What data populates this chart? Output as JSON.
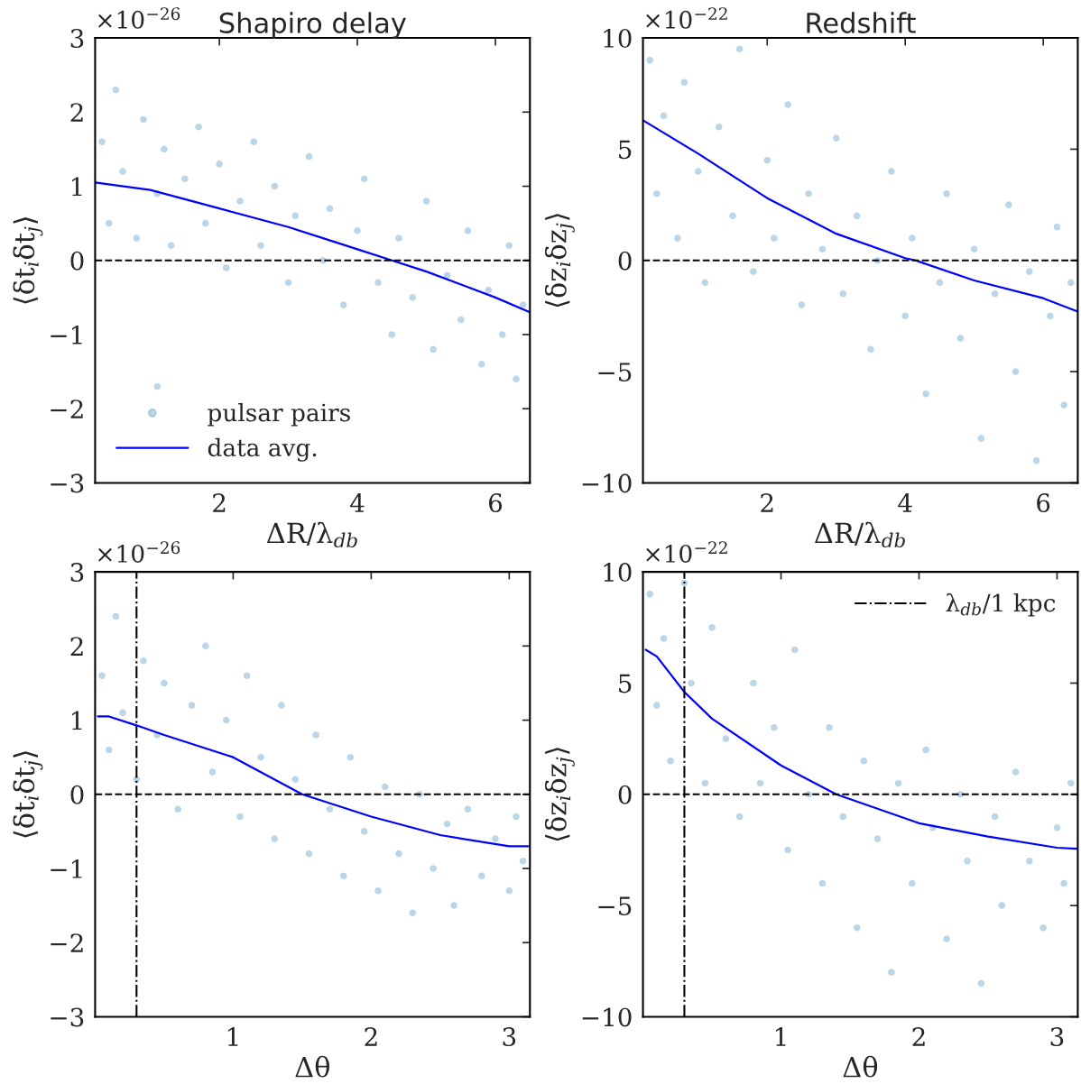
{
  "chart_data": [
    {
      "type": "scatter",
      "title": "Shapiro delay",
      "xlabel": "ΔR/λ$_{db}$",
      "ylabel": "⟨δt$_{i}$δt$_{j}$⟩",
      "annotations": [
        "×10$^{−26}$"
      ],
      "xlim": [
        0.2,
        6.5
      ],
      "xticks": [
        2,
        4,
        6
      ],
      "ylim": [
        -3,
        3
      ],
      "yticks": [
        -3,
        -2,
        -1,
        0,
        1,
        2,
        3
      ],
      "grid": false,
      "legend": "bottom left",
      "ref_lines": [
        {
          "axis": "y",
          "value": 0,
          "color": "#000000",
          "line_style": "dashed"
        }
      ],
      "series": [
        {
          "name": "pulsar pairs",
          "marker": "circle",
          "color": "#1f77b4",
          "x": [
            0.3,
            0.4,
            0.5,
            0.6,
            0.8,
            0.9,
            1.1,
            1.2,
            1.3,
            1.5,
            1.7,
            1.8,
            2.0,
            2.1,
            2.3,
            2.5,
            2.6,
            2.8,
            3.0,
            3.1,
            3.3,
            3.5,
            3.6,
            3.8,
            4.0,
            4.1,
            4.3,
            4.5,
            4.6,
            4.8,
            5.0,
            5.1,
            5.3,
            5.5,
            5.6,
            5.8,
            5.9,
            6.1,
            6.2,
            6.3,
            6.4,
            1.1
          ],
          "values": [
            1.6,
            0.5,
            2.3,
            1.2,
            0.3,
            1.9,
            0.9,
            1.5,
            0.2,
            1.1,
            1.8,
            0.5,
            1.3,
            -0.1,
            0.8,
            1.6,
            0.2,
            1.0,
            -0.3,
            0.6,
            1.4,
            0.0,
            0.7,
            -0.6,
            0.4,
            1.1,
            -0.3,
            -1.0,
            0.3,
            -0.5,
            0.8,
            -1.2,
            -0.2,
            -0.8,
            0.4,
            -1.4,
            -0.4,
            -1.0,
            0.2,
            -1.6,
            -0.6,
            -1.7
          ]
        },
        {
          "name": "data avg.",
          "type": "line",
          "color": "#0000ff",
          "x": [
            0.2,
            1,
            2,
            3,
            4,
            4.5,
            5,
            6,
            6.5
          ],
          "values": [
            1.05,
            0.95,
            0.7,
            0.45,
            0.15,
            0,
            -0.15,
            -0.5,
            -0.7
          ]
        }
      ]
    },
    {
      "type": "scatter",
      "title": "Redshift",
      "xlabel": "ΔR/λ$_{db}$",
      "ylabel": "⟨δz$_{i}$δz$_{j}$⟩",
      "annotations": [
        "×10$^{−22}$"
      ],
      "xlim": [
        0.2,
        6.5
      ],
      "xticks": [
        2,
        4,
        6
      ],
      "ylim": [
        -10,
        10
      ],
      "yticks": [
        -10,
        -5,
        0,
        5,
        10
      ],
      "grid": false,
      "ref_lines": [
        {
          "axis": "y",
          "value": 0,
          "color": "#000000",
          "line_style": "dashed"
        }
      ],
      "series": [
        {
          "marker": "circle",
          "color": "#1f77b4",
          "x": [
            0.3,
            0.4,
            0.5,
            0.7,
            0.8,
            1.0,
            1.1,
            1.3,
            1.5,
            1.6,
            1.8,
            2.0,
            2.1,
            2.3,
            2.5,
            2.6,
            2.8,
            3.0,
            3.1,
            3.3,
            3.5,
            3.6,
            3.8,
            4.0,
            4.1,
            4.3,
            4.5,
            4.6,
            4.8,
            5.0,
            5.1,
            5.3,
            5.5,
            5.6,
            5.8,
            5.9,
            6.1,
            6.2,
            6.3,
            6.4
          ],
          "values": [
            9.0,
            3.0,
            6.5,
            1.0,
            8.0,
            4.0,
            -1.0,
            6.0,
            2.0,
            9.5,
            -0.5,
            4.5,
            1.0,
            7.0,
            -2.0,
            3.0,
            0.5,
            5.5,
            -1.5,
            2.0,
            -4.0,
            0.0,
            4.0,
            -2.5,
            1.0,
            -6.0,
            -1.0,
            3.0,
            -3.5,
            0.5,
            -8.0,
            -1.5,
            2.5,
            -5.0,
            -0.5,
            -9.0,
            -2.5,
            1.5,
            -6.5,
            -1.0
          ]
        },
        {
          "type": "line",
          "color": "#0000ff",
          "x": [
            0.2,
            1,
            2,
            3,
            4,
            4.15,
            5,
            6,
            6.5
          ],
          "values": [
            6.3,
            4.8,
            2.8,
            1.2,
            0.1,
            0,
            -0.9,
            -1.7,
            -2.3
          ]
        }
      ]
    },
    {
      "type": "scatter",
      "xlabel": "Δθ",
      "ylabel": "⟨δt$_{i}$δt$_{j}$⟩",
      "annotations": [
        "×10$^{−26}$"
      ],
      "xlim": [
        0,
        3.15
      ],
      "xticks": [
        1,
        2,
        3
      ],
      "ylim": [
        -3,
        3
      ],
      "yticks": [
        -3,
        -2,
        -1,
        0,
        1,
        2,
        3
      ],
      "grid": false,
      "ref_lines": [
        {
          "axis": "y",
          "value": 0,
          "color": "#000000",
          "line_style": "dashed"
        },
        {
          "axis": "x",
          "value": 0.3,
          "color": "#000000",
          "line_style": "dashdot"
        }
      ],
      "series": [
        {
          "marker": "circle",
          "color": "#1f77b4",
          "x": [
            0.05,
            0.1,
            0.15,
            0.2,
            0.3,
            0.35,
            0.45,
            0.5,
            0.6,
            0.7,
            0.8,
            0.85,
            0.95,
            1.05,
            1.1,
            1.2,
            1.3,
            1.35,
            1.45,
            1.55,
            1.6,
            1.7,
            1.8,
            1.85,
            1.95,
            2.05,
            2.1,
            2.2,
            2.3,
            2.35,
            2.45,
            2.55,
            2.6,
            2.7,
            2.8,
            2.9,
            3.0,
            3.05,
            3.1
          ],
          "values": [
            1.6,
            0.6,
            2.4,
            1.1,
            0.2,
            1.8,
            0.8,
            1.5,
            -0.2,
            1.2,
            2.0,
            0.3,
            1.0,
            -0.3,
            1.6,
            0.5,
            -0.6,
            1.2,
            0.2,
            -0.8,
            0.8,
            -0.2,
            -1.1,
            0.5,
            -0.5,
            -1.3,
            0.1,
            -0.8,
            -1.6,
            0.0,
            -1.0,
            -0.4,
            -1.5,
            -0.2,
            -1.1,
            -0.6,
            -1.3,
            -0.3,
            -0.9
          ]
        },
        {
          "type": "line",
          "color": "#0000ff",
          "x": [
            0.02,
            0.1,
            0.3,
            0.5,
            1,
            1.5,
            2,
            2.5,
            3,
            3.14
          ],
          "values": [
            1.05,
            1.05,
            0.93,
            0.8,
            0.5,
            0.0,
            -0.3,
            -0.55,
            -0.7,
            -0.7
          ]
        }
      ]
    },
    {
      "type": "scatter",
      "xlabel": "Δθ",
      "ylabel": "⟨δz$_{i}$δz$_{j}$⟩",
      "annotations": [
        "×10$^{−22}$"
      ],
      "xlim": [
        0,
        3.15
      ],
      "xticks": [
        1,
        2,
        3
      ],
      "ylim": [
        -10,
        10
      ],
      "yticks": [
        -10,
        -5,
        0,
        5,
        10
      ],
      "grid": false,
      "legend": "top right",
      "ref_lines": [
        {
          "axis": "y",
          "value": 0,
          "color": "#000000",
          "line_style": "dashed"
        },
        {
          "axis": "x",
          "value": 0.3,
          "color": "#000000",
          "line_style": "dashdot",
          "label": "λ$_{db}$/1 kpc"
        }
      ],
      "series": [
        {
          "marker": "circle",
          "color": "#1f77b4",
          "x": [
            0.05,
            0.1,
            0.15,
            0.2,
            0.3,
            0.35,
            0.45,
            0.5,
            0.6,
            0.7,
            0.8,
            0.85,
            0.95,
            1.05,
            1.1,
            1.2,
            1.3,
            1.35,
            1.45,
            1.55,
            1.6,
            1.7,
            1.8,
            1.85,
            1.95,
            2.05,
            2.1,
            2.2,
            2.3,
            2.35,
            2.45,
            2.55,
            2.6,
            2.7,
            2.8,
            2.9,
            3.0,
            3.05,
            3.1
          ],
          "values": [
            9.0,
            4.0,
            7.0,
            1.5,
            9.5,
            5.0,
            0.5,
            7.5,
            2.5,
            -1.0,
            5.0,
            0.5,
            3.0,
            -2.5,
            6.5,
            0.0,
            -4.0,
            3.0,
            -1.0,
            -6.0,
            1.5,
            -2.0,
            -8.0,
            0.5,
            -4.0,
            2.0,
            -1.5,
            -6.5,
            0.0,
            -3.0,
            -8.5,
            -1.0,
            -5.0,
            1.0,
            -3.0,
            -6.0,
            -1.5,
            -4.0,
            0.5
          ]
        },
        {
          "type": "line",
          "color": "#0000ff",
          "x": [
            0.02,
            0.1,
            0.3,
            0.5,
            1,
            1.4,
            2,
            2.5,
            3,
            3.14
          ],
          "values": [
            6.5,
            6.2,
            4.6,
            3.4,
            1.3,
            0,
            -1.3,
            -1.9,
            -2.4,
            -2.45
          ]
        }
      ]
    }
  ]
}
